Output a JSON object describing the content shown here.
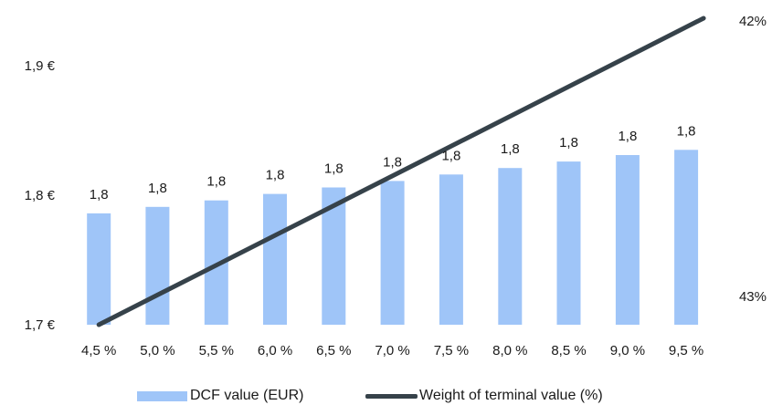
{
  "chart_data": {
    "type": "bar",
    "categories": [
      "4,5 %",
      "5,0 %",
      "5,5 %",
      "6,0 %",
      "6,5 %",
      "7,0 %",
      "7,5 %",
      "8,0 %",
      "8,5 %",
      "9,0 %",
      "9,5 %"
    ],
    "series": [
      {
        "name": "DCF value (EUR)",
        "type": "bar",
        "axis": "left",
        "color": "#9fc5f8",
        "values": [
          1.786,
          1.791,
          1.796,
          1.801,
          1.806,
          1.811,
          1.816,
          1.821,
          1.826,
          1.831,
          1.835
        ],
        "labels": [
          "1,8",
          "1,8",
          "1,8",
          "1,8",
          "1,8",
          "1,8",
          "1,8",
          "1,8",
          "1,8",
          "1,8",
          "1,8"
        ]
      },
      {
        "name": "Weight of terminal value (%)",
        "type": "line",
        "axis": "right",
        "color": "#36424a",
        "values": [
          43.0,
          42.9,
          42.8,
          42.7,
          42.6,
          42.5,
          42.4,
          42.3,
          42.2,
          42.1,
          42.0
        ]
      }
    ],
    "y_left": {
      "min": 1.7,
      "max": 1.9,
      "ticks": [
        1.7,
        1.8,
        1.9
      ],
      "tick_labels": [
        "1,7 €",
        "1,8 €",
        "1,9 €"
      ]
    },
    "y_right": {
      "min": 43.0,
      "max": 42.0,
      "ticks": [
        43,
        42
      ],
      "tick_labels": [
        "43%",
        "42%"
      ]
    },
    "grid": false,
    "legend_position": "bottom"
  }
}
